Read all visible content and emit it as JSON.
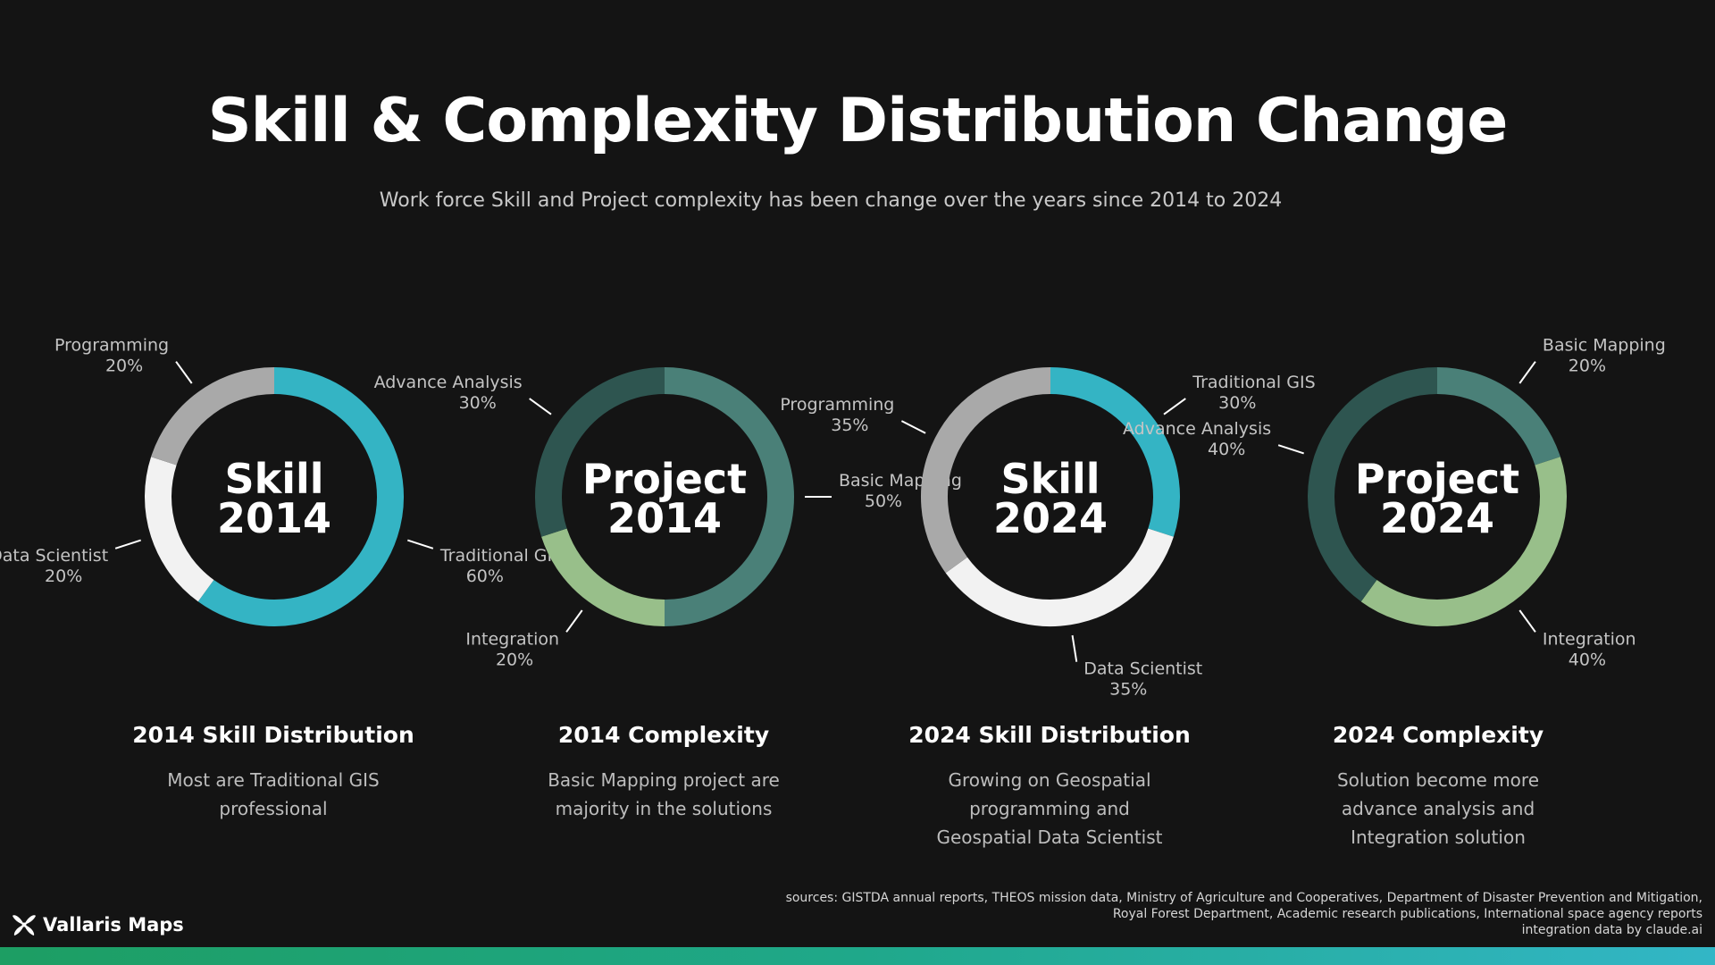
{
  "header": {
    "title": "Skill & Complexity Distribution Change",
    "subtitle": "Work force Skill and Project complexity has been change over the years since 2014 to 2024"
  },
  "chart_data": [
    {
      "type": "pie",
      "center_label": [
        "Skill",
        "2014"
      ],
      "categories": [
        "Traditional GIS",
        "Data Scientist",
        "Programming"
      ],
      "values": [
        60,
        20,
        20
      ],
      "colors": [
        "#34b4c4",
        "#f2f2f2",
        "#a9a9a9"
      ],
      "value_labels": [
        "60%",
        "20%",
        "20%"
      ]
    },
    {
      "type": "pie",
      "center_label": [
        "Project",
        "2014"
      ],
      "categories": [
        "Basic Mapping",
        "Integration",
        "Advance Analysis"
      ],
      "values": [
        50,
        20,
        30
      ],
      "colors": [
        "#4a8078",
        "#98bf8a",
        "#2e5550"
      ],
      "value_labels": [
        "50%",
        "20%",
        "30%"
      ]
    },
    {
      "type": "pie",
      "center_label": [
        "Skill",
        "2024"
      ],
      "categories": [
        "Traditional GIS",
        "Data Scientist",
        "Programming"
      ],
      "values": [
        30,
        35,
        35
      ],
      "colors": [
        "#34b4c4",
        "#f2f2f2",
        "#a9a9a9"
      ],
      "value_labels": [
        "30%",
        "35%",
        "35%"
      ]
    },
    {
      "type": "pie",
      "center_label": [
        "Project",
        "2024"
      ],
      "categories": [
        "Basic Mapping",
        "Integration",
        "Advance Analysis"
      ],
      "values": [
        20,
        40,
        40
      ],
      "colors": [
        "#4a8078",
        "#98bf8a",
        "#2e5550"
      ],
      "value_labels": [
        "20%",
        "40%",
        "40%"
      ]
    }
  ],
  "panels": [
    {
      "title": "2014 Skill Distribution",
      "desc": [
        "Most are Traditional GIS",
        "professional"
      ]
    },
    {
      "title": "2014 Complexity",
      "desc": [
        "Basic Mapping project are",
        "majority in the solutions"
      ]
    },
    {
      "title": "2024 Skill Distribution",
      "desc": [
        "Growing on Geospatial",
        "programming and",
        "Geospatial Data Scientist"
      ]
    },
    {
      "title": "2024 Complexity",
      "desc": [
        "Solution become more",
        "advance analysis and",
        "Integration solution"
      ]
    }
  ],
  "footer": {
    "sources": [
      "sources: GISTDA annual reports, THEOS mission data, Ministry of Agriculture and Cooperatives, Department of Disaster Prevention and Mitigation,",
      "Royal Forest Department, Academic research publications, International space agency reports",
      "integration data by claude.ai"
    ],
    "logo_text": "Vallaris Maps",
    "bar_colors": [
      "#1d9e63",
      "#32b6c6"
    ]
  }
}
